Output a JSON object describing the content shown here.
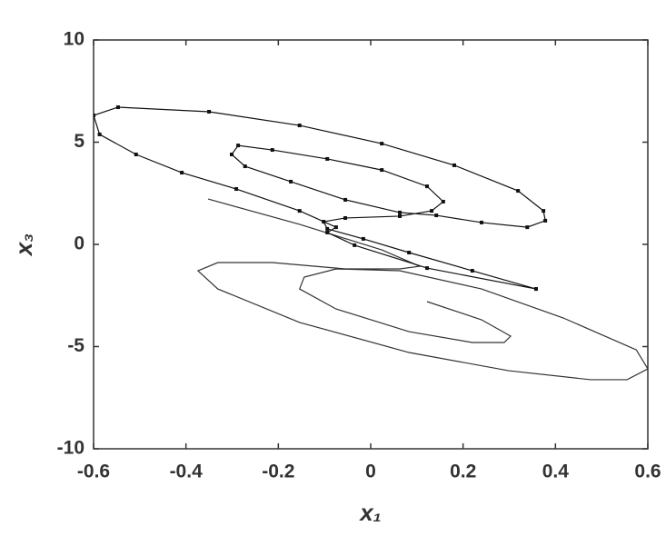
{
  "chart_data": {
    "type": "line",
    "xlabel": "x₁",
    "ylabel": "x₃",
    "xlim": [
      -0.6,
      0.6
    ],
    "xticks": [
      -0.6,
      -0.4,
      -0.2,
      0,
      0.2,
      0.4,
      0.6
    ],
    "ylim": [
      -10,
      10
    ],
    "yticks": [
      -10,
      -5,
      0,
      5,
      10
    ],
    "grid": false,
    "series": [
      {
        "color": "#333333",
        "markers": false,
        "x": [
          -0.352,
          -0.154,
          0.024,
          0.106,
          0.063,
          -0.055,
          -0.213,
          -0.331,
          -0.374,
          -0.331,
          -0.154,
          0.083,
          0.299,
          0.476,
          0.555,
          0.6,
          0.575,
          0.417,
          0.24,
          0.063,
          -0.075,
          -0.144,
          -0.154,
          -0.075,
          0.083,
          0.22,
          0.289,
          0.303,
          0.24,
          0.122
        ],
        "values": [
          2.22,
          0.98,
          -0.27,
          -1.07,
          -1.2,
          -1.2,
          -0.89,
          -0.89,
          -1.29,
          -2.18,
          -3.82,
          -5.29,
          -6.18,
          -6.62,
          -6.62,
          -6.09,
          -5.16,
          -3.6,
          -2.18,
          -1.29,
          -1.2,
          -1.6,
          -2.18,
          -3.16,
          -4.27,
          -4.8,
          -4.8,
          -4.49,
          -3.69,
          -2.8
        ]
      },
      {
        "color": "#111111",
        "markers": true,
        "x": [
          0.358,
          0.22,
          0.083,
          -0.016,
          -0.094,
          -0.102,
          -0.055,
          0.063,
          0.132,
          0.157,
          0.122,
          0.024,
          -0.094,
          -0.213,
          -0.287,
          -0.301,
          -0.272,
          -0.173,
          -0.055,
          0.063,
          0.142,
          0.24,
          0.339,
          0.378,
          0.374,
          0.319,
          0.181,
          0.024,
          -0.154,
          -0.35,
          -0.547,
          -0.6,
          -0.587,
          -0.508,
          -0.409,
          -0.291,
          -0.154,
          -0.075,
          -0.094,
          -0.035,
          0.122,
          0.358
        ],
        "values": [
          -2.18,
          -1.29,
          -0.4,
          0.27,
          0.76,
          1.11,
          1.29,
          1.38,
          1.64,
          2.09,
          2.84,
          3.64,
          4.18,
          4.62,
          4.84,
          4.4,
          3.82,
          3.07,
          2.18,
          1.56,
          1.42,
          1.07,
          0.84,
          1.16,
          1.64,
          2.62,
          3.87,
          4.93,
          5.82,
          6.49,
          6.71,
          6.31,
          5.38,
          4.4,
          3.51,
          2.71,
          1.64,
          0.84,
          0.58,
          -0.04,
          -1.16,
          -2.18
        ]
      }
    ]
  }
}
